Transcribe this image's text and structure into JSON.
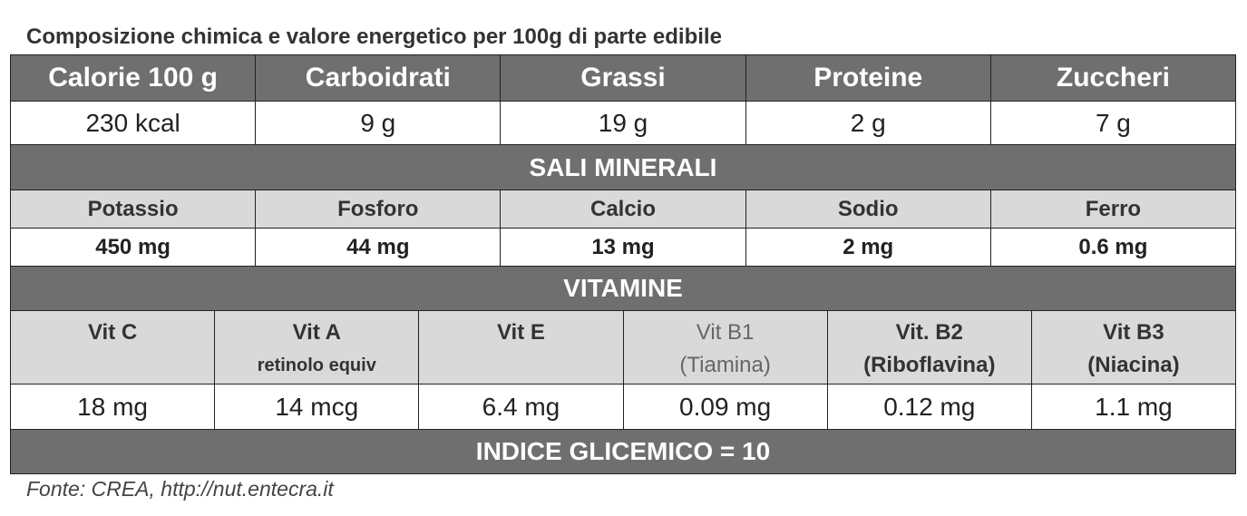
{
  "title": "Composizione chimica e valore energetico per 100g di parte edibile",
  "nutrients": {
    "header": [
      "Calorie 100 g",
      "Carboidrati",
      "Grassi",
      "Proteine",
      "Zuccheri"
    ],
    "values": [
      "230 kcal",
      "9 g",
      "19 g",
      "2 g",
      "7 g"
    ]
  },
  "minerals": {
    "title": "SALI MINERALI",
    "header": [
      "Potassio",
      "Fosforo",
      "Calcio",
      "Sodio",
      "Ferro"
    ],
    "values": [
      "450 mg",
      "44 mg",
      "13 mg",
      "2 mg",
      "0.6 mg"
    ]
  },
  "vitamins": {
    "title": "VITAMINE",
    "header": [
      [
        "Vit C"
      ],
      [
        "Vit A",
        "retinolo equiv"
      ],
      [
        "Vit E"
      ],
      [
        "Vit B1",
        "(Tiamina)"
      ],
      [
        "Vit. B2",
        "(Riboflavina)"
      ],
      [
        "Vit B3",
        "(Niacina)"
      ]
    ],
    "values": [
      "18 mg",
      "14 mcg",
      "6.4 mg",
      "0.09 mg",
      "0.12 mg",
      "1.1 mg"
    ]
  },
  "glycemic_index": "INDICE GLICEMICO = 10",
  "source": "Fonte: CREA, http://nut.entecra.it"
}
